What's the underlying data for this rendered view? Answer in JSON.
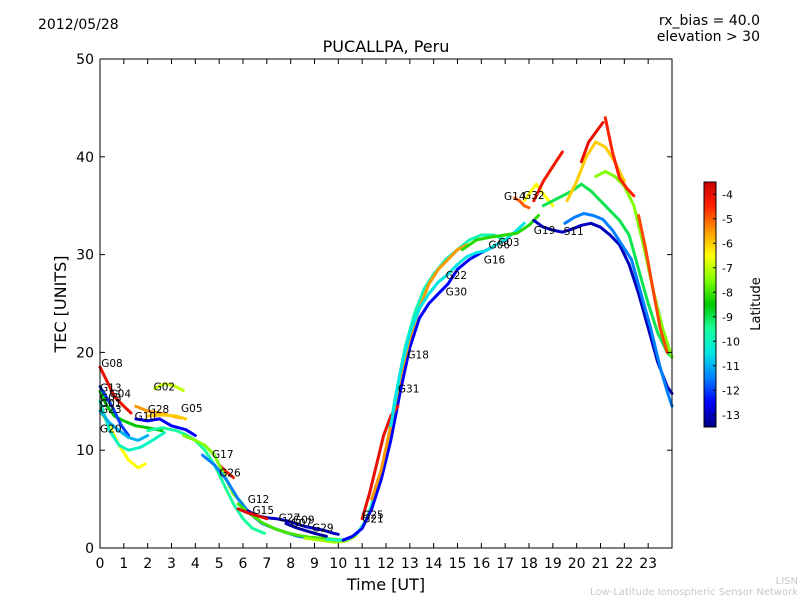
{
  "header": {
    "date": "2012/05/28",
    "rx_bias": "rx_bias = 40.0",
    "elevation": "elevation > 30"
  },
  "footer": {
    "credit_line1": "LISN",
    "credit_line2": "Low-Latitude Ionospheric Sensor Network"
  },
  "chart_data": {
    "type": "line",
    "title": "PUCALLPA, Peru",
    "xlabel": "Time [UT]",
    "ylabel": "TEC [UNITS]",
    "xlim": [
      0,
      24
    ],
    "ylim": [
      0,
      50
    ],
    "x_ticks": [
      "0",
      "1",
      "2",
      "3",
      "4",
      "5",
      "6",
      "7",
      "8",
      "9",
      "10",
      "11",
      "12",
      "13",
      "14",
      "15",
      "16",
      "17",
      "18",
      "19",
      "20",
      "21",
      "22",
      "23"
    ],
    "y_ticks": [
      "0",
      "10",
      "20",
      "30",
      "40",
      "50"
    ],
    "grid": false,
    "colorbar": {
      "label": "Latitude",
      "range": [
        -13.5,
        -3.5
      ],
      "ticks": [
        "-4",
        "-5",
        "-6",
        "-7",
        "-8",
        "-9",
        "-10",
        "-11",
        "-12",
        "-13"
      ],
      "colors": [
        "#00007f",
        "#0000ff",
        "#007fff",
        "#00e5e5",
        "#19ff9f",
        "#00c800",
        "#7fff00",
        "#ffff00",
        "#ff9900",
        "#ff2200",
        "#cc0000"
      ]
    },
    "series": [
      {
        "lat": -4.0,
        "x": [
          0.0,
          0.3,
          0.6,
          1.0,
          1.3
        ],
        "y": [
          18.5,
          17.0,
          15.5,
          14.5,
          13.8
        ]
      },
      {
        "lat": -8.5,
        "x": [
          0.0,
          0.3,
          0.6,
          1.0,
          1.5,
          2.0,
          2.6
        ],
        "y": [
          16.0,
          14.5,
          13.5,
          13.0,
          12.5,
          12.3,
          12.0
        ]
      },
      {
        "lat": -6.5,
        "x": [
          0.0,
          0.4,
          0.8,
          1.2,
          1.6,
          1.9
        ],
        "y": [
          14.0,
          12.5,
          10.5,
          9.0,
          8.2,
          8.6
        ]
      },
      {
        "lat": -10.0,
        "x": [
          0.0,
          0.4,
          0.8,
          1.2,
          1.7,
          2.2,
          2.7
        ],
        "y": [
          15.0,
          12.0,
          10.5,
          10.0,
          10.3,
          11.0,
          11.8
        ]
      },
      {
        "lat": -12.0,
        "x": [
          0.0,
          0.5,
          0.9,
          1.2
        ],
        "y": [
          16.5,
          14.5,
          12.5,
          11.5
        ]
      },
      {
        "lat": -11.0,
        "x": [
          0.0,
          0.4,
          0.8,
          1.2,
          1.6,
          2.0
        ],
        "y": [
          14.0,
          12.8,
          12.0,
          11.3,
          11.0,
          11.5
        ]
      },
      {
        "lat": -7.0,
        "x": [
          2.3,
          2.7,
          3.1,
          3.5
        ],
        "y": [
          16.3,
          16.8,
          16.6,
          16.1
        ]
      },
      {
        "lat": -5.5,
        "x": [
          1.5,
          2.0,
          2.5,
          3.0,
          3.4
        ],
        "y": [
          14.5,
          14.0,
          13.8,
          13.5,
          13.3
        ]
      },
      {
        "lat": -6.0,
        "x": [
          2.0,
          2.6,
          3.2,
          3.6
        ],
        "y": [
          13.5,
          13.6,
          13.5,
          13.2
        ]
      },
      {
        "lat": -12.5,
        "x": [
          1.5,
          2.0,
          2.5,
          3.0,
          3.6,
          4.0
        ],
        "y": [
          13.2,
          13.0,
          13.2,
          12.5,
          12.1,
          11.5
        ]
      },
      {
        "lat": -9.5,
        "x": [
          2.0,
          2.6,
          3.2,
          3.6,
          4.0,
          4.4,
          4.8,
          5.2,
          5.6,
          6.0,
          6.4,
          6.9
        ],
        "y": [
          12.0,
          12.3,
          12.0,
          11.6,
          11.0,
          10.0,
          8.5,
          6.5,
          4.5,
          3.0,
          2.0,
          1.5
        ]
      },
      {
        "lat": -4.5,
        "x": [
          5.0,
          5.3,
          5.6
        ],
        "y": [
          8.5,
          7.8,
          7.2
        ]
      },
      {
        "lat": -7.5,
        "x": [
          3.5,
          4.0,
          4.4,
          4.8,
          5.2,
          5.6,
          6.0
        ],
        "y": [
          11.5,
          11.0,
          10.5,
          9.5,
          7.5,
          5.5,
          4.5
        ]
      },
      {
        "lat": -11.5,
        "x": [
          4.3,
          4.8,
          5.3,
          5.8,
          6.3,
          6.8,
          7.3,
          7.8,
          8.3,
          8.8,
          9.3
        ],
        "y": [
          9.5,
          8.5,
          7.0,
          5.0,
          3.5,
          2.5,
          2.0,
          1.6,
          1.2,
          1.0,
          0.9
        ]
      },
      {
        "lat": -8.0,
        "x": [
          5.8,
          6.3,
          6.8,
          7.3,
          7.8,
          8.3,
          8.8,
          9.3,
          9.8,
          10.3
        ],
        "y": [
          4.5,
          3.5,
          2.6,
          2.0,
          1.6,
          1.3,
          1.1,
          1.0,
          0.9,
          0.8
        ]
      },
      {
        "lat": -13.0,
        "x": [
          6.2,
          6.6,
          7.0,
          7.4,
          7.8,
          8.2,
          8.6,
          9.0,
          9.4,
          9.8,
          10.0
        ],
        "y": [
          3.8,
          3.3,
          3.1,
          3.0,
          2.8,
          2.5,
          2.2,
          2.0,
          1.8,
          1.5,
          1.4
        ]
      },
      {
        "lat": -3.8,
        "x": [
          5.8,
          6.2,
          6.6,
          7.0
        ],
        "y": [
          4.0,
          3.6,
          3.3,
          3.0
        ]
      },
      {
        "lat": -13.2,
        "x": [
          7.8,
          8.2,
          8.6,
          9.0,
          9.5
        ],
        "y": [
          2.5,
          2.1,
          1.8,
          1.5,
          1.2
        ]
      },
      {
        "lat": -7.2,
        "x": [
          8.6,
          9.2,
          9.8,
          10.3,
          10.7,
          11.1,
          11.5,
          11.9,
          12.3,
          12.7,
          13.1
        ],
        "y": [
          1.0,
          0.8,
          0.6,
          0.7,
          1.2,
          2.5,
          5.0,
          8.5,
          13.0,
          18.5,
          23.0
        ]
      },
      {
        "lat": -9.8,
        "x": [
          9.5,
          10.0,
          10.4,
          10.8,
          11.2,
          11.6,
          12.0,
          12.4,
          12.8,
          13.2,
          13.6,
          14.0,
          14.5,
          15.0,
          15.5,
          16.0,
          16.5,
          17.0
        ],
        "y": [
          0.9,
          0.8,
          0.9,
          1.5,
          3.0,
          6.0,
          10.0,
          15.5,
          20.5,
          24.0,
          26.5,
          28.0,
          29.5,
          30.5,
          31.5,
          32.0,
          32.0,
          31.5
        ]
      },
      {
        "lat": -12.5,
        "x": [
          10.2,
          10.6,
          11.0,
          11.4,
          11.8,
          12.2,
          12.6,
          13.0,
          13.4,
          13.8,
          14.2,
          14.6,
          15.0,
          15.5,
          16.0,
          16.5
        ],
        "y": [
          0.8,
          1.2,
          2.0,
          4.0,
          7.0,
          11.0,
          16.0,
          20.5,
          23.5,
          25.0,
          26.0,
          27.0,
          28.5,
          29.5,
          30.2,
          30.8
        ]
      },
      {
        "lat": -4.0,
        "x": [
          11.0,
          11.3,
          11.6,
          11.9,
          12.2,
          12.5
        ],
        "y": [
          3.0,
          5.5,
          8.5,
          11.5,
          13.5,
          14.5
        ]
      },
      {
        "lat": -5.5,
        "x": [
          11.4,
          11.8,
          12.2,
          12.6,
          13.0,
          13.4,
          13.8,
          14.2,
          14.6,
          15.0,
          15.4
        ],
        "y": [
          5.0,
          8.0,
          12.5,
          17.5,
          21.5,
          24.5,
          27.0,
          28.5,
          29.5,
          30.5,
          31.0
        ]
      },
      {
        "lat": -10.5,
        "x": [
          12.2,
          12.6,
          13.0,
          13.4,
          13.8,
          14.2,
          14.6,
          15.0,
          15.4,
          15.8,
          16.2,
          16.6,
          17.0,
          17.4,
          17.8
        ],
        "y": [
          12.5,
          18.0,
          22.0,
          24.5,
          26.0,
          27.2,
          28.0,
          29.0,
          29.8,
          30.2,
          30.4,
          31.0,
          31.5,
          32.3,
          33.2
        ]
      },
      {
        "lat": -8.2,
        "x": [
          15.2,
          15.8,
          16.4,
          17.0,
          17.5,
          18.0,
          18.4
        ],
        "y": [
          30.5,
          31.5,
          31.8,
          32.0,
          32.2,
          33.0,
          34.0
        ]
      },
      {
        "lat": -13.0,
        "x": [
          18.2,
          18.6,
          19.0,
          19.4,
          19.8,
          20.2,
          20.6,
          21.0,
          21.4,
          21.8,
          22.2,
          22.6,
          23.0,
          23.4,
          23.8,
          24.0
        ],
        "y": [
          33.5,
          32.8,
          32.5,
          32.3,
          32.6,
          33.0,
          33.2,
          32.8,
          32.0,
          31.0,
          29.0,
          26.0,
          22.5,
          19.0,
          16.5,
          15.8
        ]
      },
      {
        "lat": -11.5,
        "x": [
          19.5,
          19.9,
          20.3,
          20.7,
          21.1,
          21.5,
          21.9,
          22.3,
          22.7,
          23.1,
          23.5,
          23.8,
          24.0
        ],
        "y": [
          33.2,
          33.8,
          34.2,
          34.0,
          33.6,
          32.5,
          31.0,
          29.5,
          26.0,
          22.5,
          18.5,
          16.0,
          14.5
        ]
      },
      {
        "lat": -5.0,
        "x": [
          17.4,
          17.6,
          17.8,
          18.0
        ],
        "y": [
          35.8,
          35.5,
          35.0,
          34.8
        ]
      },
      {
        "lat": -6.5,
        "x": [
          17.8,
          18.0,
          18.3,
          18.6,
          19.0
        ],
        "y": [
          35.5,
          36.2,
          37.2,
          36.2,
          35.0
        ]
      },
      {
        "lat": -4.2,
        "x": [
          18.2,
          18.6,
          19.0,
          19.4
        ],
        "y": [
          35.5,
          37.5,
          39.0,
          40.5
        ]
      },
      {
        "lat": -9.0,
        "x": [
          18.6,
          19.0,
          19.4,
          19.8,
          20.2,
          20.6,
          21.0,
          21.4,
          21.8,
          22.2,
          22.6,
          23.0,
          23.4,
          23.8,
          24.0
        ],
        "y": [
          35.0,
          35.5,
          36.0,
          36.5,
          37.2,
          36.5,
          35.5,
          34.5,
          33.5,
          32.0,
          28.5,
          25.0,
          22.0,
          20.0,
          19.5
        ]
      },
      {
        "lat": -6.0,
        "x": [
          19.6,
          20.0,
          20.4,
          20.8,
          21.2,
          21.6,
          22.0
        ],
        "y": [
          35.5,
          37.5,
          40.0,
          41.5,
          41.0,
          39.5,
          37.5
        ]
      },
      {
        "lat": -4.0,
        "x": [
          20.2,
          20.5,
          20.8,
          21.1
        ],
        "y": [
          39.5,
          41.5,
          42.5,
          43.5
        ]
      },
      {
        "lat": -7.5,
        "x": [
          20.8,
          21.2,
          21.6,
          22.0,
          22.4,
          22.8,
          23.2,
          23.6,
          24.0
        ],
        "y": [
          38.0,
          38.5,
          38.0,
          37.0,
          35.0,
          31.0,
          26.5,
          22.5,
          19.5
        ]
      },
      {
        "lat": -4.5,
        "x": [
          21.2,
          21.5,
          21.8,
          22.1,
          22.4
        ],
        "y": [
          44.0,
          40.5,
          37.8,
          36.8,
          36.0
        ]
      },
      {
        "lat": -4.8,
        "x": [
          22.6,
          22.9,
          23.2,
          23.5,
          23.8
        ],
        "y": [
          34.0,
          30.5,
          26.5,
          22.5,
          20.0
        ]
      }
    ],
    "labels": [
      {
        "text": "G08",
        "x": 0.05,
        "y": 18.5
      },
      {
        "text": "G13",
        "x": 0.0,
        "y": 16.0
      },
      {
        "text": "G04",
        "x": 0.4,
        "y": 15.4
      },
      {
        "text": "G03",
        "x": 0.0,
        "y": 15.0
      },
      {
        "text": "G01",
        "x": 0.0,
        "y": 14.4
      },
      {
        "text": "G23",
        "x": 0.0,
        "y": 13.8
      },
      {
        "text": "G02",
        "x": 2.25,
        "y": 16.1
      },
      {
        "text": "G28",
        "x": 2.0,
        "y": 13.8
      },
      {
        "text": "G05",
        "x": 3.4,
        "y": 13.9
      },
      {
        "text": "G10",
        "x": 1.45,
        "y": 13.1
      },
      {
        "text": "G20",
        "x": 0.0,
        "y": 11.8
      },
      {
        "text": "G17",
        "x": 4.7,
        "y": 9.2
      },
      {
        "text": "G26",
        "x": 5.0,
        "y": 7.3
      },
      {
        "text": "G12",
        "x": 6.2,
        "y": 4.6
      },
      {
        "text": "G15",
        "x": 6.4,
        "y": 3.5
      },
      {
        "text": "G27",
        "x": 7.5,
        "y": 2.7
      },
      {
        "text": "G09",
        "x": 8.1,
        "y": 2.5
      },
      {
        "text": "G07",
        "x": 8.0,
        "y": 2.2
      },
      {
        "text": "G29",
        "x": 8.9,
        "y": 1.7
      },
      {
        "text": "G25",
        "x": 11.0,
        "y": 3.0
      },
      {
        "text": "G21",
        "x": 11.0,
        "y": 2.6
      },
      {
        "text": "G18",
        "x": 12.9,
        "y": 19.4
      },
      {
        "text": "G31",
        "x": 12.5,
        "y": 15.9
      },
      {
        "text": "G22",
        "x": 14.5,
        "y": 27.5
      },
      {
        "text": "G30",
        "x": 14.5,
        "y": 25.8
      },
      {
        "text": "G16",
        "x": 16.1,
        "y": 29.1
      },
      {
        "text": "G06",
        "x": 16.3,
        "y": 30.6
      },
      {
        "text": "G03",
        "x": 16.7,
        "y": 30.9
      },
      {
        "text": "G14",
        "x": 16.95,
        "y": 35.6
      },
      {
        "text": "G32",
        "x": 17.75,
        "y": 35.7
      },
      {
        "text": "G19",
        "x": 18.2,
        "y": 32.1
      },
      {
        "text": "S11",
        "x": 19.45,
        "y": 32.0
      }
    ]
  }
}
